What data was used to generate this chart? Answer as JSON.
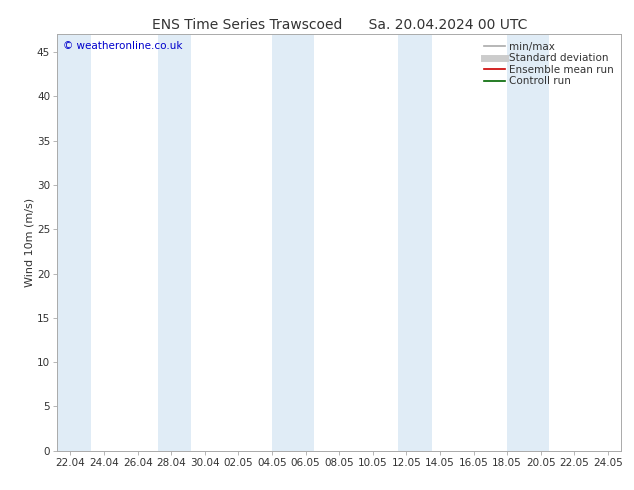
{
  "title_left": "ENS Time Series Trawscoed",
  "title_right": "Sa. 20.04.2024 00 UTC",
  "ylabel": "Wind 10m (m/s)",
  "watermark": "© weatheronline.co.uk",
  "watermark_color": "#0000cc",
  "ylim": [
    0,
    47
  ],
  "yticks": [
    0,
    5,
    10,
    15,
    20,
    25,
    30,
    35,
    40,
    45
  ],
  "xtick_labels": [
    "22.04",
    "24.04",
    "26.04",
    "28.04",
    "30.04",
    "02.05",
    "04.05",
    "06.05",
    "08.05",
    "10.05",
    "12.05",
    "14.05",
    "16.05",
    "18.05",
    "20.05",
    "22.05",
    "24.05"
  ],
  "bg_color": "#ffffff",
  "plot_bg_color": "#ffffff",
  "shade_color": "#cce0f0",
  "shade_alpha": 0.6,
  "legend_items": [
    {
      "label": "min/max",
      "color": "#aaaaaa",
      "lw": 1.2,
      "style": "-"
    },
    {
      "label": "Standard deviation",
      "color": "#cccccc",
      "lw": 5,
      "style": "-"
    },
    {
      "label": "Ensemble mean run",
      "color": "#cc0000",
      "lw": 1.2,
      "style": "-"
    },
    {
      "label": "Controll run",
      "color": "#006600",
      "lw": 1.2,
      "style": "-"
    }
  ],
  "title_fontsize": 10,
  "axis_fontsize": 8,
  "tick_fontsize": 7.5,
  "watermark_fontsize": 7.5,
  "spine_color": "#aaaaaa"
}
